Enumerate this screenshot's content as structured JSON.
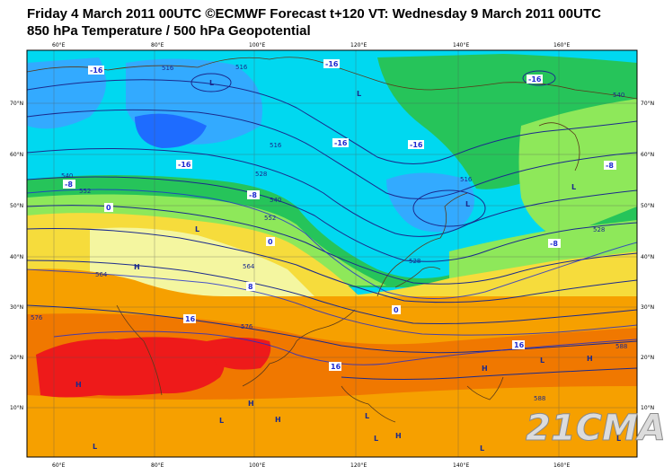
{
  "title_line1": "Friday 4 March 2011 00UTC ©ECMWF Forecast t+120 VT: Wednesday 9 March 2011 00UTC",
  "title_line2": "850 hPa Temperature / 500 hPa Geopotential",
  "watermark": "21CMA",
  "lon_labels": [
    "60°E",
    "80°E",
    "100°E",
    "120°E",
    "140°E",
    "160°E"
  ],
  "lat_labels": [
    "70°N",
    "60°N",
    "50°N",
    "40°N",
    "30°N",
    "20°N",
    "10°N"
  ],
  "colors": {
    "cold": "#00d8f0",
    "cool": "#33aaff",
    "cool_green": "#26c45a",
    "mild_green": "#8ee85a",
    "pale": "#f4f6a0",
    "yellow": "#f6dc3c",
    "orange": "#f6a000",
    "deep_orange": "#f07800",
    "red": "#ee1a1a",
    "contour": "#1b2a8c"
  },
  "geopotential_labels": [
    "516",
    "516",
    "516",
    "528",
    "540",
    "552",
    "564",
    "576",
    "588",
    "540",
    "552",
    "564",
    "576",
    "588",
    "528",
    "516",
    "528",
    "540"
  ],
  "temperature_labels": [
    "-16",
    "-16",
    "-16",
    "-16",
    "-16",
    "-8",
    "-8",
    "0",
    "0",
    "8",
    "16",
    "16",
    "16",
    "-16",
    "-8",
    "0",
    "-8"
  ],
  "pressure_systems": [
    "L",
    "L",
    "L",
    "H",
    "H",
    "L",
    "H",
    "H",
    "H",
    "H",
    "L",
    "L",
    "L",
    "L",
    "H",
    "L",
    "L",
    "L",
    "L"
  ]
}
